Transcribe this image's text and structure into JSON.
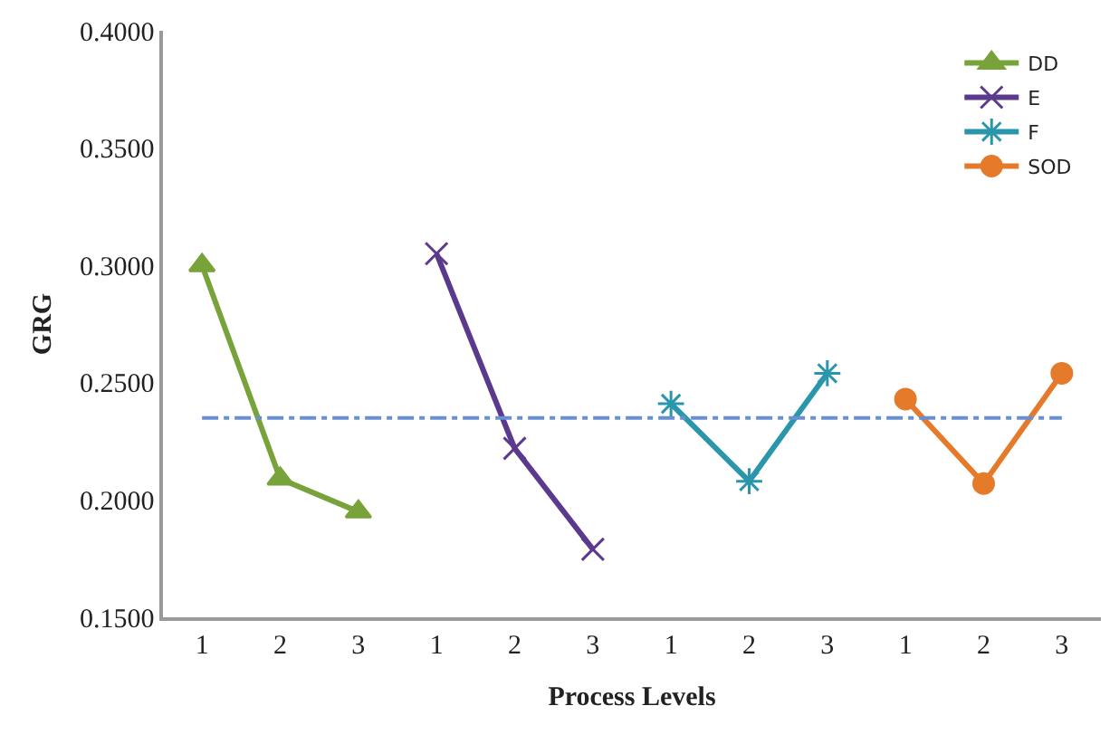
{
  "chart_data": {
    "type": "line",
    "xlabel": "Process Levels",
    "ylabel": "GRG",
    "categories": [
      "1",
      "2",
      "3",
      "1",
      "2",
      "3",
      "1",
      "2",
      "3",
      "1",
      "2",
      "3"
    ],
    "series": [
      {
        "name": "DD",
        "color": "#77a33a",
        "marker": "triangle",
        "values": [
          0.3,
          0.209,
          0.195,
          null,
          null,
          null,
          null,
          null,
          null,
          null,
          null,
          null
        ]
      },
      {
        "name": "E",
        "color": "#5b3a8e",
        "marker": "cross",
        "values": [
          null,
          null,
          null,
          0.305,
          0.222,
          0.179,
          null,
          null,
          null,
          null,
          null,
          null
        ]
      },
      {
        "name": "F",
        "color": "#2a96ac",
        "marker": "cross",
        "values": [
          null,
          null,
          null,
          null,
          null,
          null,
          0.241,
          0.208,
          0.254,
          null,
          null,
          null
        ]
      },
      {
        "name": "SOD",
        "color": "#e57a2b",
        "marker": "circle",
        "values": [
          null,
          null,
          null,
          null,
          null,
          null,
          null,
          null,
          null,
          0.243,
          0.207,
          0.254
        ]
      }
    ],
    "ylim": [
      0.15,
      0.4
    ],
    "yticks": [
      {
        "value": 0.15,
        "label": "0.1500"
      },
      {
        "value": 0.2,
        "label": "0.2000"
      },
      {
        "value": 0.25,
        "label": "0.2500"
      },
      {
        "value": 0.3,
        "label": "0.3000"
      },
      {
        "value": 0.35,
        "label": "0.3500"
      },
      {
        "value": 0.4,
        "label": "0.4000"
      }
    ],
    "ref_lines": [
      {
        "axis": "y",
        "value": 0.235,
        "color": "#6a8fd0",
        "line_style": "dashdot"
      }
    ],
    "grid": false,
    "legend": "top right",
    "line_style": "solid"
  }
}
